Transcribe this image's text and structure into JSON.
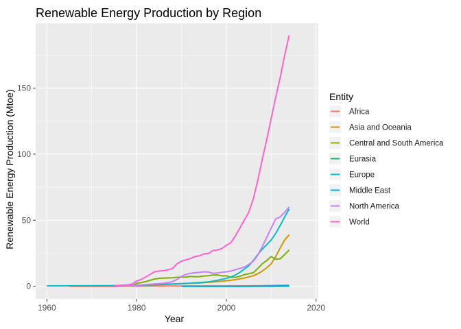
{
  "chart_data": {
    "type": "line",
    "title": "Renewable Energy Production by Region",
    "xlabel": "Year",
    "ylabel": "Renewable Energy Production (Mtoe)",
    "xlim": [
      1957.5,
      2020.5
    ],
    "ylim": [
      -9.5,
      199
    ],
    "x_ticks": [
      1960,
      1980,
      2000,
      2020
    ],
    "y_ticks": [
      0,
      50,
      100,
      150
    ],
    "grid": true,
    "legend_position": "right",
    "legend_title": "Entity",
    "series": [
      {
        "name": "Africa",
        "color": "#F8766D",
        "x": [
          1965,
          1975,
          1980,
          1985,
          1990,
          1995,
          2000,
          2005,
          2008,
          2010,
          2012,
          2014
        ],
        "y": [
          0,
          0,
          0.1,
          0.2,
          0.2,
          0.3,
          0.3,
          0.4,
          0.5,
          0.6,
          0.7,
          0.8
        ]
      },
      {
        "name": "Asia and Oceania",
        "color": "#CD9600",
        "x": [
          1975,
          1978,
          1980,
          1982,
          1984,
          1986,
          1988,
          1990,
          1992,
          1994,
          1996,
          1998,
          2000,
          2002,
          2004,
          2006,
          2007,
          2008,
          2009,
          2010,
          2011,
          2012,
          2013,
          2014
        ],
        "y": [
          0,
          0.1,
          0.5,
          0.7,
          1.0,
          1.3,
          1.6,
          1.9,
          2.2,
          2.5,
          3.0,
          3.5,
          4.2,
          5.0,
          6.2,
          8.0,
          9.5,
          11.5,
          14.0,
          17.0,
          22.5,
          29.0,
          35.0,
          39.0
        ]
      },
      {
        "name": "Central and South America",
        "color": "#7CAE00",
        "x": [
          1975,
          1978,
          1979,
          1980,
          1981,
          1982,
          1983,
          1984,
          1985,
          1986,
          1988,
          1989,
          1990,
          1991,
          1992,
          1993,
          1994,
          1995,
          1996,
          1997,
          1998,
          1999,
          2000,
          2001,
          2002,
          2003,
          2004,
          2005,
          2006,
          2007,
          2008,
          2009,
          2010,
          2011,
          2012,
          2013,
          2014
        ],
        "y": [
          0,
          0.2,
          0.5,
          2.2,
          2.8,
          3.5,
          4.5,
          5.5,
          6.0,
          6.2,
          6.5,
          6.8,
          7.0,
          7.0,
          7.5,
          7.2,
          7.3,
          7.8,
          8.0,
          8.5,
          8.6,
          7.9,
          8.0,
          6.8,
          6.8,
          7.5,
          8.8,
          9.5,
          10.2,
          13.5,
          17.0,
          19.5,
          22.5,
          20.5,
          20.8,
          24.0,
          27.5
        ]
      },
      {
        "name": "Eurasia",
        "color": "#00BE67",
        "x": [
          1990,
          1995,
          2000,
          2005,
          2010,
          2014
        ],
        "y": [
          0,
          0,
          0,
          0,
          0,
          0.1
        ]
      },
      {
        "name": "Europe",
        "color": "#00BFC4",
        "x": [
          1960,
          1970,
          1975,
          1978,
          1980,
          1982,
          1984,
          1986,
          1988,
          1990,
          1992,
          1994,
          1996,
          1998,
          2000,
          2001,
          2002,
          2003,
          2004,
          2005,
          2006,
          2007,
          2008,
          2009,
          2010,
          2011,
          2012,
          2013,
          2014
        ],
        "y": [
          0.3,
          0.4,
          0.5,
          0.6,
          0.8,
          1.0,
          1.2,
          1.5,
          1.8,
          2.0,
          2.4,
          2.8,
          3.3,
          4.5,
          6.0,
          7.0,
          8.5,
          10.5,
          13.0,
          15.5,
          19.5,
          24.0,
          28.0,
          31.5,
          35.0,
          40.0,
          46.0,
          52.5,
          58.5
        ]
      },
      {
        "name": "Middle East",
        "color": "#00A9FF",
        "x": [
          1990,
          1995,
          2000,
          2005,
          2010,
          2014
        ],
        "y": [
          0,
          0,
          0,
          0,
          0.2,
          0.4
        ]
      },
      {
        "name": "North America",
        "color": "#C77CFF",
        "x": [
          1975,
          1978,
          1980,
          1982,
          1984,
          1986,
          1987,
          1988,
          1989,
          1990,
          1991,
          1992,
          1993,
          1994,
          1995,
          1996,
          1997,
          1998,
          1999,
          2000,
          2001,
          2002,
          2003,
          2004,
          2005,
          2006,
          2007,
          2008,
          2009,
          2010,
          2011,
          2012,
          2013,
          2014
        ],
        "y": [
          0,
          0.3,
          0.8,
          1.3,
          1.8,
          2.3,
          2.8,
          3.5,
          5.2,
          7.5,
          9.0,
          9.8,
          10.2,
          10.5,
          11.0,
          10.8,
          9.8,
          10.0,
          10.6,
          11.0,
          11.5,
          12.5,
          13.5,
          14.5,
          16.5,
          19.0,
          23.5,
          30.0,
          37.0,
          44.0,
          51.0,
          52.5,
          56.0,
          60.0
        ]
      },
      {
        "name": "World",
        "color": "#FF61CC",
        "x": [
          1975,
          1978,
          1979,
          1980,
          1981,
          1982,
          1983,
          1984,
          1985,
          1986,
          1987,
          1988,
          1989,
          1990,
          1991,
          1992,
          1993,
          1994,
          1995,
          1996,
          1997,
          1998,
          1999,
          2000,
          2001,
          2002,
          2003,
          2004,
          2005,
          2006,
          2007,
          2008,
          2009,
          2010,
          2011,
          2012,
          2013,
          2014
        ],
        "y": [
          0.5,
          1.0,
          1.8,
          4.0,
          5.2,
          7.0,
          9.0,
          11.0,
          11.5,
          11.8,
          12.5,
          13.5,
          17.0,
          19.0,
          20.0,
          21.0,
          22.5,
          23.0,
          24.5,
          24.8,
          27.0,
          27.5,
          28.5,
          31.0,
          33.0,
          38.0,
          44.0,
          50.0,
          56.0,
          66.0,
          80.0,
          96.0,
          111.0,
          127.0,
          143.0,
          158.0,
          175.0,
          190.0
        ]
      }
    ]
  }
}
